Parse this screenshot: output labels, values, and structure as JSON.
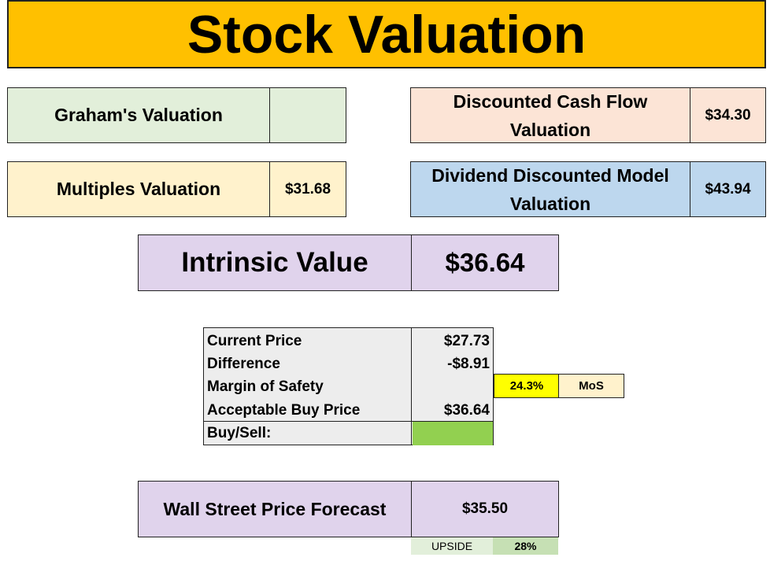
{
  "title": "Stock Valuation",
  "grahams": {
    "label": "Graham's Valuation",
    "value": ""
  },
  "dcf": {
    "label_line1": "Discounted Cash Flow",
    "label_line2": "Valuation",
    "value": "$34.30"
  },
  "multiples": {
    "label": "Multiples Valuation",
    "value": "$31.68"
  },
  "ddm": {
    "label_line1": "Dividend Discounted Model",
    "label_line2": "Valuation",
    "value": "$43.94"
  },
  "intrinsic": {
    "label": "Intrinsic Value",
    "value": "$36.64"
  },
  "summary": {
    "rows": [
      {
        "label": "Current Price",
        "value": "$27.73"
      },
      {
        "label": "Difference",
        "value": "-$8.91"
      },
      {
        "label": "Margin of Safety",
        "value": ""
      },
      {
        "label": "Acceptable Buy Price",
        "value": "$36.64"
      },
      {
        "label": "Buy/Sell:",
        "value": ""
      }
    ],
    "mos_percent": "24.3%",
    "mos_label": "MoS",
    "buy_sell_color": "#92d050"
  },
  "forecast": {
    "label": "Wall Street Price Forecast",
    "value": "$35.50",
    "upside_label": "UPSIDE",
    "upside_value": "28%"
  },
  "colors": {
    "title_bg": "#ffc000",
    "mos_bg": "#ffff00",
    "upside_bg": "#c6e0b4"
  }
}
